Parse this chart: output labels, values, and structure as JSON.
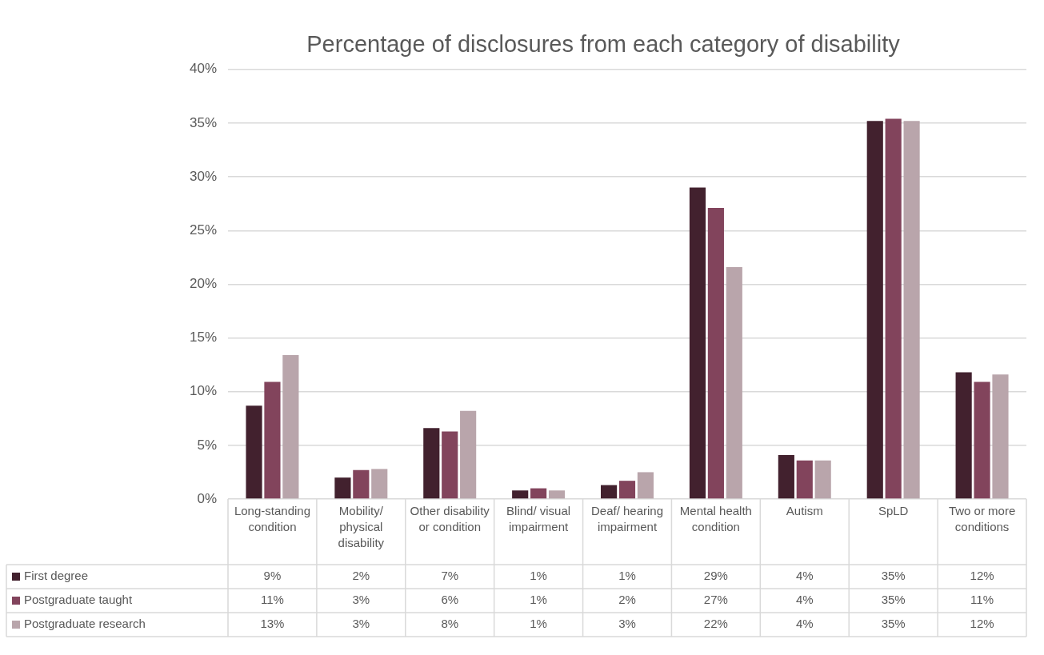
{
  "chart_data": {
    "type": "bar",
    "title": "Percentage of disclosures from each category of disability",
    "categories": [
      "Long-standing condition",
      "Mobility/ physical disability",
      "Other disability or condition",
      "Blind/ visual impairment",
      "Deaf/ hearing impairment",
      "Mental health condition",
      "Autism",
      "SpLD",
      "Two or more conditions"
    ],
    "series": [
      {
        "name": "First degree",
        "color": "#42212e",
        "values": [
          8.7,
          2.0,
          6.6,
          0.8,
          1.3,
          29.0,
          4.1,
          35.2,
          11.8
        ],
        "value_labels": [
          "9%",
          "2%",
          "7%",
          "1%",
          "1%",
          "29%",
          "4%",
          "35%",
          "12%"
        ]
      },
      {
        "name": "Postgraduate taught",
        "color": "#82445c",
        "values": [
          10.9,
          2.7,
          6.3,
          1.0,
          1.7,
          27.1,
          3.6,
          35.4,
          10.9
        ],
        "value_labels": [
          "11%",
          "3%",
          "6%",
          "1%",
          "2%",
          "27%",
          "4%",
          "35%",
          "11%"
        ]
      },
      {
        "name": "Postgraduate research",
        "color": "#b9a5ab",
        "values": [
          13.4,
          2.8,
          8.2,
          0.8,
          2.5,
          21.6,
          3.6,
          35.2,
          11.6
        ],
        "value_labels": [
          "13%",
          "3%",
          "8%",
          "1%",
          "3%",
          "22%",
          "4%",
          "35%",
          "12%"
        ]
      }
    ],
    "ylim": [
      0,
      40
    ],
    "yticks": [
      {
        "value": 0,
        "label": "0%"
      },
      {
        "value": 5,
        "label": "5%"
      },
      {
        "value": 10,
        "label": "10%"
      },
      {
        "value": 15,
        "label": "15%"
      },
      {
        "value": 20,
        "label": "20%"
      },
      {
        "value": 25,
        "label": "25%"
      },
      {
        "value": 30,
        "label": "30%"
      },
      {
        "value": 35,
        "label": "35%"
      },
      {
        "value": 40,
        "label": "40%"
      }
    ],
    "grid": "y",
    "legend": "bottom"
  }
}
